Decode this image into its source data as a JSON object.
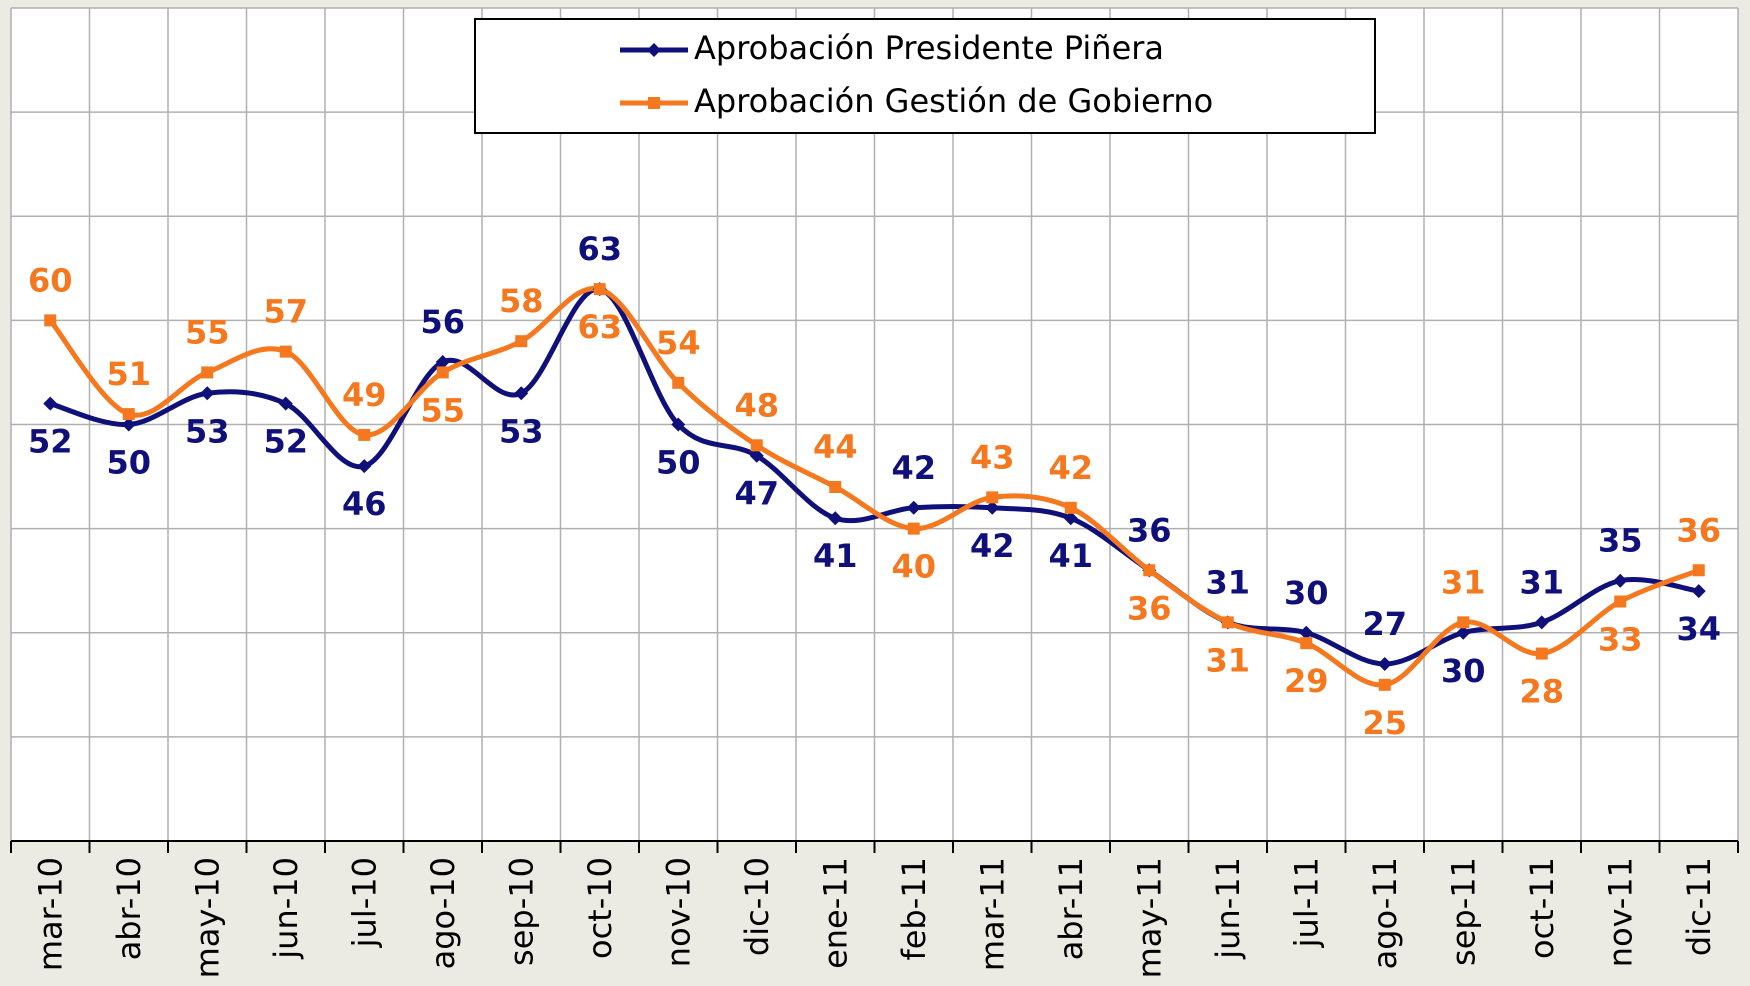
{
  "chart_data": {
    "type": "line",
    "categories": [
      "mar-10",
      "abr-10",
      "may-10",
      "jun-10",
      "jul-10",
      "ago-10",
      "sep-10",
      "oct-10",
      "nov-10",
      "dic-10",
      "ene-11",
      "feb-11",
      "mar-11",
      "abr-11",
      "may-11",
      "jun-11",
      "jul-11",
      "ago-11",
      "sep-11",
      "oct-11",
      "nov-11",
      "dic-11"
    ],
    "series": [
      {
        "name": "Aprobación Presidente Piñera",
        "color": "#10107a",
        "values": [
          52,
          50,
          53,
          52,
          46,
          56,
          53,
          63,
          50,
          47,
          41,
          42,
          42,
          41,
          36,
          31,
          30,
          27,
          30,
          31,
          35,
          34
        ]
      },
      {
        "name": "Aprobación Gestión de Gobierno",
        "color": "#f5781e",
        "values": [
          60,
          51,
          55,
          57,
          49,
          55,
          58,
          63,
          54,
          48,
          44,
          40,
          43,
          42,
          36,
          31,
          29,
          25,
          31,
          28,
          33,
          36
        ]
      }
    ],
    "ylim": [
      10,
      90
    ],
    "yticks": [
      10,
      20,
      30,
      40,
      50,
      60,
      70,
      80,
      90
    ],
    "grid": true,
    "smooth": true
  }
}
